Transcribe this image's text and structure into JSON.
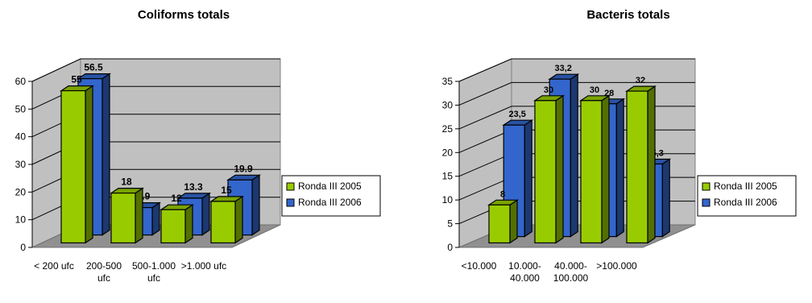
{
  "chart_data": [
    {
      "type": "bar",
      "title": "Coliforms totals",
      "categories": [
        "< 200 ufc",
        "200-500 ufc",
        "500-1.000 ufc",
        ">1.000 ufc"
      ],
      "category_lines": [
        [
          "< 200 ufc"
        ],
        [
          "200-500",
          "ufc"
        ],
        [
          "500-1.000",
          "ufc"
        ],
        [
          ">1.000 ufc"
        ]
      ],
      "series": [
        {
          "name": "Ronda III 2005",
          "values": [
            55,
            18,
            12,
            15
          ],
          "labels": [
            "55",
            "18",
            "12",
            "15"
          ],
          "color": "#99cc00"
        },
        {
          "name": "Ronda III 2006",
          "values": [
            56.5,
            9.9,
            13.3,
            19.9
          ],
          "labels": [
            "56.5",
            "9.9",
            "13.3",
            "19.9"
          ],
          "color": "#3366cc"
        }
      ],
      "ylim": [
        0,
        60
      ],
      "yticks": [
        "0",
        "10",
        "20",
        "30",
        "40",
        "50",
        "60"
      ],
      "grid": true,
      "legend": "right"
    },
    {
      "type": "bar",
      "title": "Bacteris totals",
      "categories": [
        "<10.000",
        "10.000-40.000",
        "40.000-100.000",
        ">100.000"
      ],
      "category_lines": [
        [
          "<10.000"
        ],
        [
          "10.000-",
          "40.000"
        ],
        [
          "40.000-",
          "100.000"
        ],
        [
          ">100.000"
        ]
      ],
      "series": [
        {
          "name": "Ronda III 2005",
          "values": [
            8,
            30,
            30,
            32
          ],
          "labels": [
            "8",
            "30",
            "30",
            "32"
          ],
          "color": "#99cc00"
        },
        {
          "name": "Ronda III 2006",
          "values": [
            23.5,
            33.2,
            28,
            15.3
          ],
          "labels": [
            "23,5",
            "33,2",
            "28",
            "15,3"
          ],
          "color": "#3366cc"
        }
      ],
      "ylim": [
        0,
        35
      ],
      "yticks": [
        "0",
        "5",
        "10",
        "15",
        "20",
        "25",
        "30",
        "35"
      ],
      "grid": true,
      "legend": "right"
    }
  ]
}
